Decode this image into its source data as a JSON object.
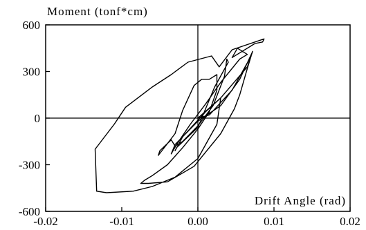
{
  "chart_data": {
    "type": "line",
    "title": "",
    "ylabel": "Moment (tonf*cm)",
    "xlabel": "Drift Angle (rad)",
    "xlim": [
      -0.02,
      0.02
    ],
    "ylim": [
      -600,
      600
    ],
    "xticks": [
      -0.02,
      -0.01,
      0.0,
      0.01,
      0.02
    ],
    "xtick_labels": [
      "-0.02",
      "-0.01",
      "0.00",
      "0.01",
      "0.02"
    ],
    "yticks": [
      600,
      300,
      0,
      -300,
      -600
    ],
    "ytick_labels": [
      "600",
      "300",
      "0",
      "-300",
      "-600"
    ],
    "grid": false,
    "reference_lines": {
      "x": 0,
      "y": 0
    },
    "series": [
      {
        "x": [
          0.0,
          0.003,
          0.0065,
          0.0072,
          0.0055,
          0.003,
          0.0,
          -0.003,
          -0.0035,
          -0.0028,
          -0.001,
          0.001,
          0.003,
          0.0055,
          0.0065,
          0.0052,
          0.0045,
          0.0075,
          0.0085,
          0.0087,
          0.0045,
          0.0028,
          0.0018,
          -0.0013,
          -0.0035,
          -0.006,
          -0.0095,
          -0.011,
          -0.0135,
          -0.0133,
          -0.012,
          -0.0085,
          -0.006,
          -0.003,
          0.0,
          0.0025,
          0.003,
          0.001,
          -0.002,
          -0.003,
          -0.0028,
          0.0,
          0.0022,
          0.004,
          0.0038,
          0.0035,
          0.002,
          0.0,
          -0.002,
          -0.003,
          -0.0035,
          -0.005,
          -0.0052,
          -0.003,
          -0.002,
          -0.0005,
          0.0005,
          0.0015,
          0.0025,
          0.0025,
          0.0015,
          0.0,
          -0.002,
          -0.004,
          -0.006,
          -0.007,
          -0.0075,
          -0.0065,
          -0.004,
          -0.0005,
          0.003,
          0.0048,
          0.0055,
          0.0065,
          0.007,
          0.0045,
          0.0015,
          0.0
        ],
        "y": [
          0,
          130,
          330,
          430,
          250,
          80,
          -20,
          -170,
          -230,
          -170,
          -40,
          90,
          230,
          380,
          410,
          450,
          390,
          480,
          490,
          510,
          440,
          330,
          400,
          360,
          280,
          200,
          70,
          -40,
          -200,
          -470,
          -480,
          -470,
          -440,
          -380,
          -260,
          -40,
          130,
          40,
          -120,
          -210,
          -190,
          -60,
          200,
          360,
          380,
          270,
          80,
          -50,
          -150,
          -180,
          -140,
          -210,
          -240,
          -100,
          50,
          210,
          250,
          250,
          280,
          180,
          40,
          -70,
          -190,
          -300,
          -370,
          -400,
          -420,
          -420,
          -410,
          -310,
          -100,
          60,
          150,
          320,
          400,
          180,
          20,
          0
        ]
      }
    ]
  }
}
